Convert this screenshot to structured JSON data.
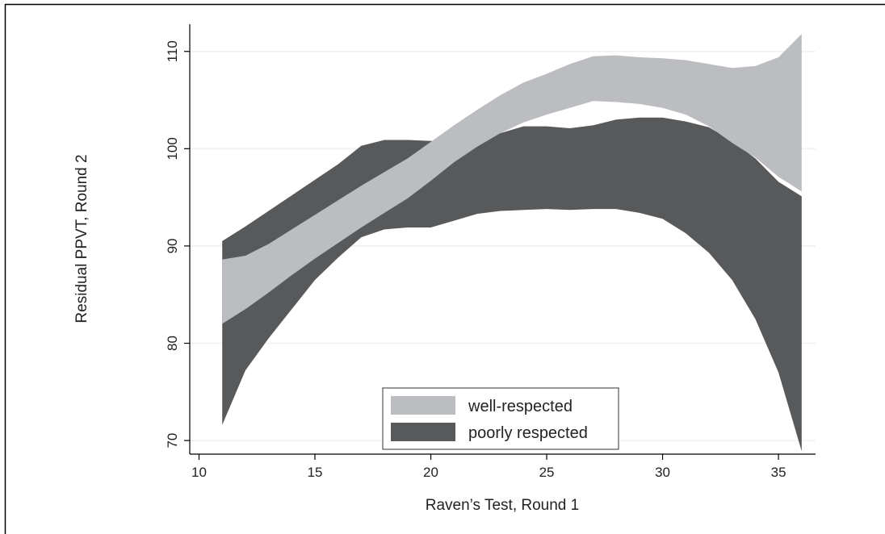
{
  "chart_data": {
    "type": "area",
    "xlabel": "Raven’s Test, Round 1",
    "ylabel": "Residual PPVT, Round 2",
    "xlim": [
      9.6,
      36.6
    ],
    "ylim": [
      68.6,
      112.8
    ],
    "xticks": [
      10,
      15,
      20,
      25,
      30,
      35
    ],
    "yticks": [
      70,
      80,
      90,
      100,
      110
    ],
    "grid": true,
    "legend_position": "bottom-center",
    "x": [
      11,
      12,
      13,
      14,
      15,
      16,
      17,
      18,
      19,
      20,
      21,
      22,
      23,
      24,
      25,
      26,
      27,
      28,
      29,
      30,
      31,
      32,
      33,
      34,
      35,
      36
    ],
    "series": [
      {
        "name": "poorly respected",
        "color": "#58595b",
        "upper": [
          90.5,
          92.0,
          93.6,
          95.2,
          96.8,
          98.4,
          100.3,
          100.9,
          100.9,
          100.8,
          100.9,
          101.0,
          101.6,
          102.3,
          102.3,
          102.1,
          102.4,
          103.0,
          103.2,
          103.2,
          102.8,
          102.2,
          100.8,
          99.0,
          96.6,
          95.1
        ],
        "lower": [
          71.6,
          77.2,
          80.5,
          83.5,
          86.5,
          88.8,
          90.9,
          91.7,
          91.9,
          91.9,
          92.6,
          93.3,
          93.6,
          93.7,
          93.8,
          93.7,
          93.8,
          93.8,
          93.4,
          92.8,
          91.3,
          89.3,
          86.5,
          82.5,
          77.0,
          68.9
        ]
      },
      {
        "name": "well-respected",
        "color": "#bbbdc0",
        "upper": [
          88.6,
          89.0,
          90.2,
          91.7,
          93.2,
          94.7,
          96.2,
          97.6,
          99.0,
          100.7,
          102.4,
          104.0,
          105.5,
          106.8,
          107.7,
          108.7,
          109.5,
          109.6,
          109.4,
          109.3,
          109.1,
          108.7,
          108.3,
          108.5,
          109.4,
          111.8
        ],
        "lower": [
          82.0,
          83.5,
          85.2,
          87.0,
          88.7,
          90.3,
          91.9,
          93.4,
          94.9,
          96.7,
          98.6,
          100.2,
          101.6,
          102.7,
          103.5,
          104.2,
          104.9,
          104.8,
          104.6,
          104.2,
          103.5,
          102.3,
          100.6,
          99.1,
          97.1,
          95.6
        ]
      }
    ]
  }
}
